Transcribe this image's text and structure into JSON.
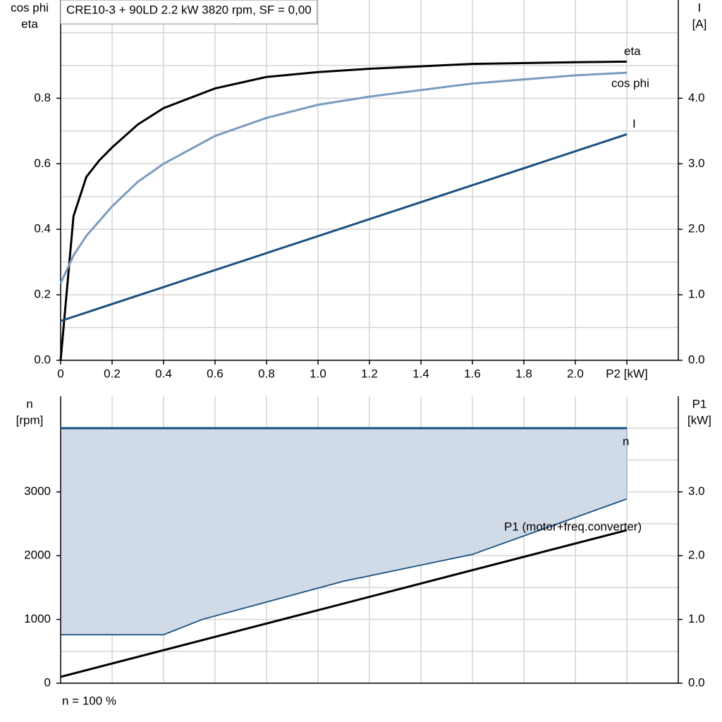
{
  "chart_data": [
    {
      "type": "line",
      "title": "CRE10-3 + 90LD   2.2 kW   3820 rpm, SF = 0,00",
      "ylabel": [
        "cos phi",
        "eta"
      ],
      "y2label": [
        "I",
        "[A]"
      ],
      "xlim": [
        0,
        2.4
      ],
      "xticks": [
        0,
        0.2,
        0.4,
        0.6,
        0.8,
        {
          "value": 1,
          "label": "1.0"
        },
        1.2,
        1.4,
        1.6,
        1.8,
        {
          "value": 2,
          "label": "2.0"
        },
        {
          "value": 2.2,
          "label": "P2 [kW]"
        }
      ],
      "ylim": [
        0,
        1.1
      ],
      "yticks": [
        {
          "value": 0,
          "label": "0.0"
        },
        0.2,
        0.4,
        0.6,
        0.8
      ],
      "yminor": [
        0.1,
        0.3,
        0.5,
        0.7,
        0.9,
        1.0
      ],
      "y2lim": [
        0,
        5.5
      ],
      "y2ticks": [
        {
          "value": 0,
          "label": "0.0"
        },
        {
          "value": 1,
          "label": "1.0"
        },
        {
          "value": 2,
          "label": "2.0"
        },
        {
          "value": 3,
          "label": "3.0"
        },
        {
          "value": 4,
          "label": "4.0"
        }
      ],
      "series": [
        {
          "name": "eta",
          "color": "#000000",
          "x": [
            0,
            0.05,
            0.1,
            0.15,
            0.2,
            0.3,
            0.4,
            0.6,
            0.8,
            1.0,
            1.2,
            1.6,
            2.0,
            2.2
          ],
          "values": [
            0,
            0.44,
            0.56,
            0.61,
            0.65,
            0.72,
            0.77,
            0.83,
            0.865,
            0.88,
            0.89,
            0.905,
            0.91,
            0.912
          ]
        },
        {
          "name": "cos phi",
          "color": "#7a9cbf",
          "x": [
            0,
            0.05,
            0.1,
            0.2,
            0.3,
            0.4,
            0.6,
            0.8,
            1.0,
            1.2,
            1.6,
            2.0,
            2.2
          ],
          "values": [
            0.235,
            0.32,
            0.38,
            0.47,
            0.545,
            0.6,
            0.685,
            0.74,
            0.78,
            0.805,
            0.845,
            0.87,
            0.878
          ]
        },
        {
          "name": "I",
          "color": "#1a4f80",
          "axis": "y2",
          "x": [
            0,
            2.2
          ],
          "values": [
            0.6,
            3.45
          ]
        }
      ]
    },
    {
      "type": "line",
      "ylabel": [
        "n",
        "[rpm]"
      ],
      "y2label": [
        "P1",
        "[kW]"
      ],
      "xlim": [
        0,
        2.4
      ],
      "xgrid": [
        0.2,
        0.4,
        0.6,
        0.8,
        1.0,
        1.2,
        1.4,
        1.6,
        1.8,
        2.0,
        2.2
      ],
      "ylim": [
        0,
        4500
      ],
      "yticks": [
        0,
        1000,
        2000,
        3000
      ],
      "yminor": [
        500,
        1500,
        2500,
        3500,
        4000
      ],
      "y2lim": [
        0,
        4.5
      ],
      "y2ticks": [
        {
          "value": 0,
          "label": "0.0"
        },
        {
          "value": 1,
          "label": "1.0"
        },
        {
          "value": 2,
          "label": "2.0"
        },
        {
          "value": 3,
          "label": "3.0"
        }
      ],
      "range_lower": {
        "x": [
          0,
          0.4,
          0.55,
          1.1,
          1.6,
          2.2
        ],
        "values": [
          760,
          760,
          1000,
          1600,
          2020,
          2890
        ]
      },
      "series": [
        {
          "name": "n",
          "color": "#1a4f80",
          "x": [
            0,
            2.2
          ],
          "values": [
            4000,
            4000
          ]
        },
        {
          "name": "P1 (motor+freq.converter)",
          "color": "#000000",
          "axis": "y2",
          "x": [
            0,
            2.2
          ],
          "values": [
            0.1,
            2.4
          ]
        }
      ],
      "footnote": "n = 100 %"
    }
  ]
}
